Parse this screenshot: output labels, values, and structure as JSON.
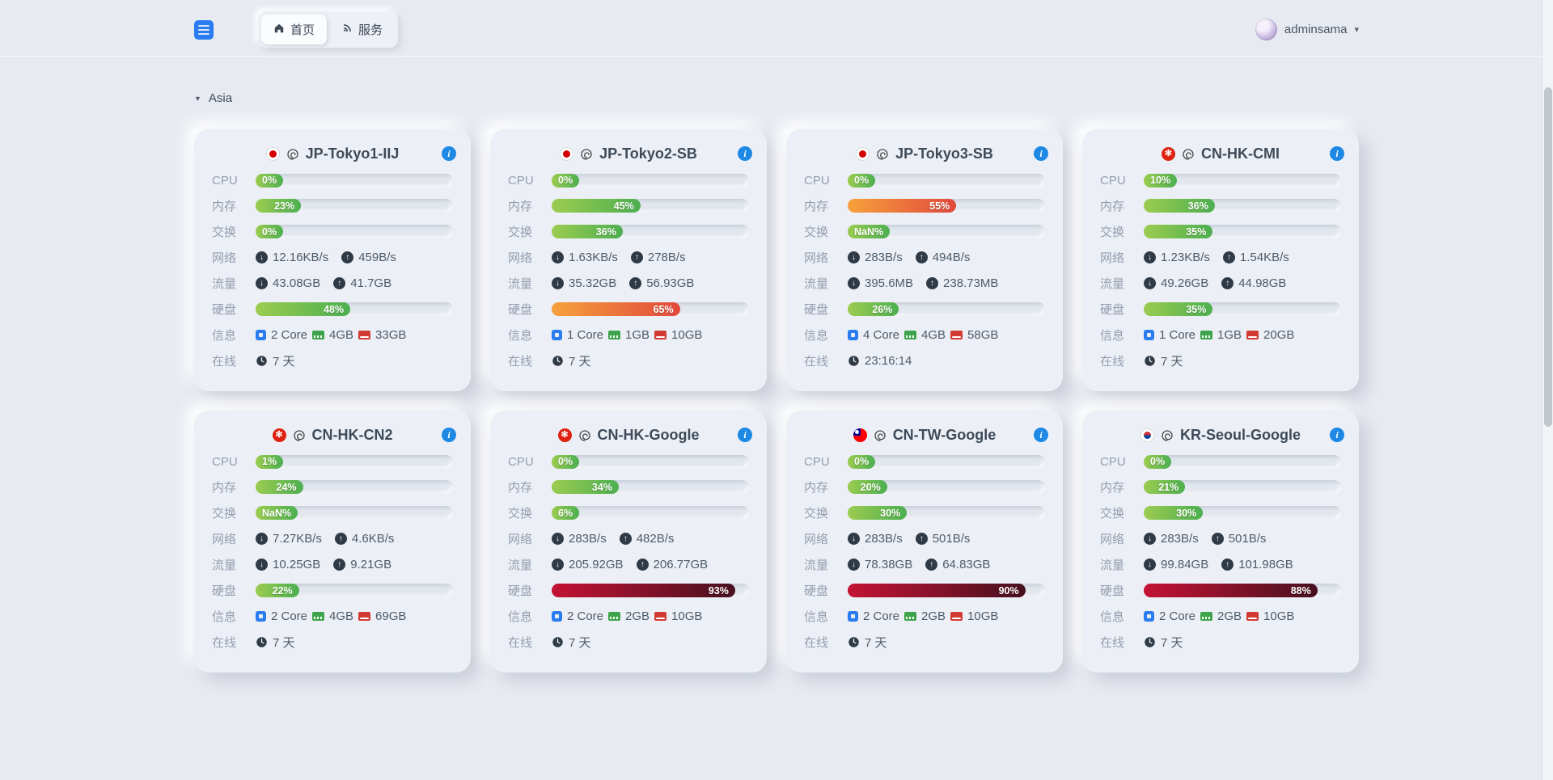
{
  "header": {
    "tabs": [
      {
        "label": "首页"
      },
      {
        "label": "服务"
      }
    ],
    "user": {
      "name": "adminsama"
    }
  },
  "section": {
    "title": "Asia"
  },
  "labels": {
    "cpu": "CPU",
    "mem": "内存",
    "swap": "交换",
    "net": "网络",
    "traffic": "流量",
    "disk": "硬盘",
    "info": "信息",
    "uptime": "在线"
  },
  "glyphs": {
    "down": "↓",
    "up": "↑",
    "caret": "▾",
    "collapse": "▼",
    "info": "i"
  },
  "colors": {
    "accent_blue": "#1e88e5",
    "bar_green": "#4caf50",
    "bar_orange": "#e1493c",
    "bar_dark_red": "#46101f",
    "cpu_icon_blue": "#2b7cf0",
    "ram_icon_green": "#3da44b",
    "disk_icon_red": "#d23b33"
  },
  "servers": [
    {
      "name": "JP-Tokyo1-IIJ",
      "flag": "jp",
      "cpu": {
        "pct": 0,
        "label": "0%"
      },
      "mem": {
        "pct": 23,
        "label": "23%"
      },
      "swap": {
        "pct": 0,
        "label": "0%"
      },
      "disk": {
        "pct": 48,
        "label": "48%"
      },
      "net_down": "12.16KB/s",
      "net_up": "459B/s",
      "traffic_down": "43.08GB",
      "traffic_up": "41.7GB",
      "cores": "2 Core",
      "ram": "4GB",
      "storage": "33GB",
      "uptime": "7 天"
    },
    {
      "name": "JP-Tokyo2-SB",
      "flag": "jp",
      "cpu": {
        "pct": 0,
        "label": "0%"
      },
      "mem": {
        "pct": 45,
        "label": "45%"
      },
      "swap": {
        "pct": 36,
        "label": "36%"
      },
      "disk": {
        "pct": 65,
        "label": "65%"
      },
      "net_down": "1.63KB/s",
      "net_up": "278B/s",
      "traffic_down": "35.32GB",
      "traffic_up": "56.93GB",
      "cores": "1 Core",
      "ram": "1GB",
      "storage": "10GB",
      "uptime": "7 天"
    },
    {
      "name": "JP-Tokyo3-SB",
      "flag": "jp",
      "cpu": {
        "pct": 0,
        "label": "0%"
      },
      "mem": {
        "pct": 55,
        "label": "55%"
      },
      "swap": {
        "pct": null,
        "label": "NaN%"
      },
      "disk": {
        "pct": 26,
        "label": "26%"
      },
      "net_down": "283B/s",
      "net_up": "494B/s",
      "traffic_down": "395.6MB",
      "traffic_up": "238.73MB",
      "cores": "4 Core",
      "ram": "4GB",
      "storage": "58GB",
      "uptime": "23:16:14"
    },
    {
      "name": "CN-HK-CMI",
      "flag": "hk",
      "cpu": {
        "pct": 10,
        "label": "10%"
      },
      "mem": {
        "pct": 36,
        "label": "36%"
      },
      "swap": {
        "pct": 35,
        "label": "35%"
      },
      "disk": {
        "pct": 35,
        "label": "35%"
      },
      "net_down": "1.23KB/s",
      "net_up": "1.54KB/s",
      "traffic_down": "49.26GB",
      "traffic_up": "44.98GB",
      "cores": "1 Core",
      "ram": "1GB",
      "storage": "20GB",
      "uptime": "7 天"
    },
    {
      "name": "CN-HK-CN2",
      "flag": "hk",
      "cpu": {
        "pct": 1,
        "label": "1%"
      },
      "mem": {
        "pct": 24,
        "label": "24%"
      },
      "swap": {
        "pct": null,
        "label": "NaN%"
      },
      "disk": {
        "pct": 22,
        "label": "22%"
      },
      "net_down": "7.27KB/s",
      "net_up": "4.6KB/s",
      "traffic_down": "10.25GB",
      "traffic_up": "9.21GB",
      "cores": "2 Core",
      "ram": "4GB",
      "storage": "69GB",
      "uptime": "7 天"
    },
    {
      "name": "CN-HK-Google",
      "flag": "hk",
      "cpu": {
        "pct": 0,
        "label": "0%"
      },
      "mem": {
        "pct": 34,
        "label": "34%"
      },
      "swap": {
        "pct": 6,
        "label": "6%"
      },
      "disk": {
        "pct": 93,
        "label": "93%"
      },
      "net_down": "283B/s",
      "net_up": "482B/s",
      "traffic_down": "205.92GB",
      "traffic_up": "206.77GB",
      "cores": "2 Core",
      "ram": "2GB",
      "storage": "10GB",
      "uptime": "7 天"
    },
    {
      "name": "CN-TW-Google",
      "flag": "tw",
      "cpu": {
        "pct": 0,
        "label": "0%"
      },
      "mem": {
        "pct": 20,
        "label": "20%"
      },
      "swap": {
        "pct": 30,
        "label": "30%"
      },
      "disk": {
        "pct": 90,
        "label": "90%"
      },
      "net_down": "283B/s",
      "net_up": "501B/s",
      "traffic_down": "78.38GB",
      "traffic_up": "64.83GB",
      "cores": "2 Core",
      "ram": "2GB",
      "storage": "10GB",
      "uptime": "7 天"
    },
    {
      "name": "KR-Seoul-Google",
      "flag": "kr",
      "cpu": {
        "pct": 0,
        "label": "0%"
      },
      "mem": {
        "pct": 21,
        "label": "21%"
      },
      "swap": {
        "pct": 30,
        "label": "30%"
      },
      "disk": {
        "pct": 88,
        "label": "88%"
      },
      "net_down": "283B/s",
      "net_up": "501B/s",
      "traffic_down": "99.84GB",
      "traffic_up": "101.98GB",
      "cores": "2 Core",
      "ram": "2GB",
      "storage": "10GB",
      "uptime": "7 天"
    }
  ]
}
